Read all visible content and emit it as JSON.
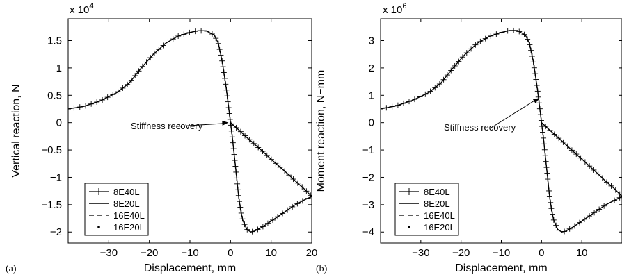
{
  "chart_data": [
    {
      "type": "line",
      "panel_label": "(a)",
      "xlabel": "Displacement, mm",
      "ylabel": "Vertical reaction, N",
      "y_exponent": "x 10",
      "y_exponent_power": "4",
      "xlim": [
        -40,
        20
      ],
      "ylim": [
        -2.2,
        1.9
      ],
      "xticks": [
        -30,
        -20,
        -10,
        0,
        10,
        20
      ],
      "xtick_labels": [
        "−30",
        "−20",
        "−10",
        "0",
        "10",
        "20"
      ],
      "yticks": [
        1.5,
        1,
        0.5,
        0,
        -0.5,
        -1,
        -1.5,
        -2
      ],
      "ytick_labels": [
        "1.5",
        "1",
        "0.5",
        "0",
        "−0.5",
        "−1",
        "−1.5",
        "−2"
      ],
      "annotation": {
        "text": "Stiffness recovery",
        "x": -0.5,
        "y": 0
      },
      "legend": [
        "8E40L",
        "8E20L",
        "16E40L",
        "16E20L"
      ],
      "legend_position": "lower-left",
      "curve_x": [
        -40,
        -36,
        -32,
        -28,
        -25,
        -22,
        -19,
        -16,
        -13,
        -10,
        -8,
        -6,
        -4,
        -3,
        -2,
        -1.5,
        -1,
        -0.5,
        0,
        0.5,
        1,
        1.5,
        2,
        2.5,
        3,
        4,
        5,
        6,
        8,
        10,
        12,
        14,
        16,
        18,
        20,
        18,
        16,
        14,
        12,
        10,
        8,
        6,
        4,
        2,
        0
      ],
      "curve_y": [
        0.25,
        0.3,
        0.4,
        0.55,
        0.72,
        1.0,
        1.25,
        1.45,
        1.58,
        1.65,
        1.68,
        1.68,
        1.6,
        1.45,
        1.1,
        0.85,
        0.6,
        0.3,
        0.0,
        -0.3,
        -0.65,
        -1.0,
        -1.35,
        -1.6,
        -1.78,
        -1.95,
        -2.0,
        -1.98,
        -1.9,
        -1.8,
        -1.7,
        -1.6,
        -1.5,
        -1.42,
        -1.35,
        -1.2,
        -1.07,
        -0.93,
        -0.8,
        -0.67,
        -0.53,
        -0.4,
        -0.27,
        -0.13,
        0.0
      ]
    },
    {
      "type": "line",
      "panel_label": "(b)",
      "xlabel": "Displacement, mm",
      "ylabel": "Moment reaction, N−mm",
      "y_exponent": "x 10",
      "y_exponent_power": "6",
      "xlim": [
        -40,
        20
      ],
      "ylim": [
        -4.4,
        3.8
      ],
      "xticks": [
        -30,
        -20,
        -10,
        0,
        10
      ],
      "xtick_labels": [
        "−30",
        "−20",
        "−10",
        "0",
        "10"
      ],
      "yticks": [
        3,
        2,
        1,
        0,
        -1,
        -2,
        -3,
        -4
      ],
      "ytick_labels": [
        "3",
        "2",
        "1",
        "0",
        "−1",
        "−2",
        "−3",
        "−4"
      ],
      "annotation": {
        "text": "Stiffness recovery",
        "x": -0.5,
        "y": 0.9
      },
      "legend": [
        "8E40L",
        "8E20L",
        "16E40L",
        "16E20L"
      ],
      "legend_position": "lower-left",
      "curve_x": [
        -40,
        -36,
        -32,
        -28,
        -25,
        -22,
        -19,
        -16,
        -13,
        -10,
        -8,
        -6,
        -4,
        -3,
        -2,
        -1.5,
        -1,
        -0.5,
        0,
        0.5,
        1,
        1.5,
        2,
        2.5,
        3,
        4,
        5,
        6,
        8,
        10,
        12,
        14,
        16,
        18,
        20,
        18,
        16,
        14,
        12,
        10,
        8,
        6,
        4,
        2,
        0
      ],
      "curve_y": [
        0.5,
        0.62,
        0.82,
        1.1,
        1.45,
        2.0,
        2.5,
        2.9,
        3.15,
        3.3,
        3.37,
        3.37,
        3.2,
        2.9,
        2.2,
        1.7,
        1.2,
        0.6,
        0.0,
        -0.6,
        -1.3,
        -2.0,
        -2.7,
        -3.2,
        -3.55,
        -3.9,
        -4.0,
        -3.97,
        -3.8,
        -3.6,
        -3.4,
        -3.2,
        -3.0,
        -2.85,
        -2.7,
        -2.4,
        -2.15,
        -1.87,
        -1.6,
        -1.33,
        -1.07,
        -0.8,
        -0.53,
        -0.27,
        0.0
      ]
    }
  ]
}
